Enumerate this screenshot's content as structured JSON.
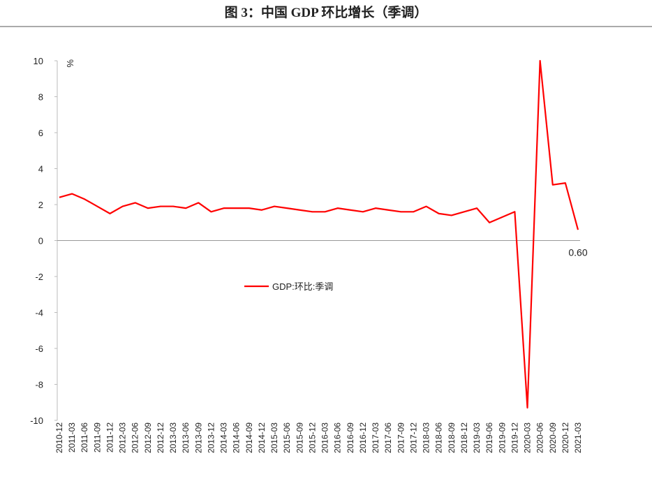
{
  "chart_data": {
    "type": "line",
    "title": "图 3：中国 GDP 环比增长（季调）",
    "y_unit": "%",
    "categories": [
      "2010-12",
      "2011-03",
      "2011-06",
      "2011-09",
      "2011-12",
      "2012-03",
      "2012-06",
      "2012-09",
      "2012-12",
      "2013-03",
      "2013-06",
      "2013-09",
      "2013-12",
      "2014-03",
      "2014-06",
      "2014-09",
      "2014-12",
      "2015-03",
      "2015-06",
      "2015-09",
      "2015-12",
      "2016-03",
      "2016-06",
      "2016-09",
      "2016-12",
      "2017-03",
      "2017-06",
      "2017-09",
      "2017-12",
      "2018-03",
      "2018-06",
      "2018-09",
      "2018-12",
      "2019-03",
      "2019-06",
      "2019-09",
      "2019-12",
      "2020-03",
      "2020-06",
      "2020-09",
      "2020-12",
      "2021-03"
    ],
    "series": [
      {
        "name": "GDP:环比:季调",
        "color": "#ff0000",
        "values": [
          2.4,
          2.6,
          2.3,
          1.9,
          1.5,
          1.9,
          2.1,
          1.8,
          1.9,
          1.9,
          1.8,
          2.1,
          1.6,
          1.8,
          1.8,
          1.8,
          1.7,
          1.9,
          1.8,
          1.7,
          1.6,
          1.6,
          1.8,
          1.7,
          1.6,
          1.8,
          1.7,
          1.6,
          1.6,
          1.9,
          1.5,
          1.4,
          1.6,
          1.8,
          1.0,
          1.3,
          1.6,
          -9.3,
          10,
          3.1,
          3.2,
          0.6
        ],
        "value_labels": [
          null,
          null,
          null,
          null,
          null,
          null,
          null,
          null,
          null,
          null,
          null,
          null,
          null,
          null,
          null,
          null,
          null,
          null,
          null,
          null,
          null,
          null,
          null,
          null,
          null,
          null,
          null,
          null,
          null,
          null,
          null,
          null,
          null,
          null,
          null,
          null,
          null,
          null,
          null,
          null,
          null,
          "0.60"
        ]
      }
    ],
    "ylim": [
      -10,
      10
    ],
    "yticks": [
      -10,
      -8,
      -6,
      -4,
      -2,
      0,
      2,
      4,
      6,
      8,
      10
    ]
  }
}
